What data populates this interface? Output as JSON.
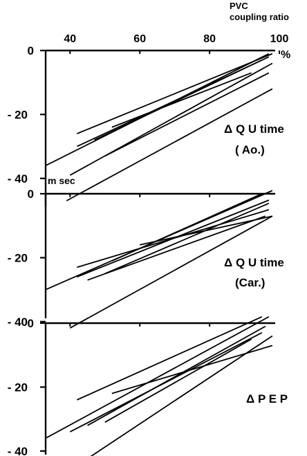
{
  "top_label_line1": "PVC",
  "top_label_line2": "coupling ratio",
  "x_unit": "%",
  "y_unit": "m sec",
  "x_ticks": [
    "40",
    "60",
    "80",
    "100"
  ],
  "chart_data": [
    {
      "type": "line",
      "label_lines": [
        "Δ Q U time",
        "( Ao.)"
      ],
      "xlim": [
        33,
        100
      ],
      "ylim": [
        -45,
        0
      ],
      "y_ticks": [
        "0",
        "-20",
        "-40"
      ],
      "series": [
        {
          "x": [
            33,
            97
          ],
          "y": [
            -36,
            -1
          ]
        },
        {
          "x": [
            40,
            98
          ],
          "y": [
            -39,
            -4
          ]
        },
        {
          "x": [
            42,
            98
          ],
          "y": [
            -26,
            -1
          ]
        },
        {
          "x": [
            42,
            97
          ],
          "y": [
            -30,
            -2
          ]
        },
        {
          "x": [
            47,
            95
          ],
          "y": [
            -28,
            -3
          ]
        },
        {
          "x": [
            52,
            92
          ],
          "y": [
            -24,
            -7
          ]
        },
        {
          "x": [
            50,
            97
          ],
          "y": [
            -33,
            -7
          ]
        },
        {
          "x": [
            39,
            98
          ],
          "y": [
            -47,
            -12
          ]
        }
      ]
    },
    {
      "type": "line",
      "label_lines": [
        "Δ Q U time",
        "(Car.)"
      ],
      "xlim": [
        33,
        100
      ],
      "ylim": [
        -45,
        0
      ],
      "y_ticks": [
        "0",
        "-20",
        "-40"
      ],
      "series": [
        {
          "x": [
            33,
            98
          ],
          "y": [
            -30,
            1
          ]
        },
        {
          "x": [
            40,
            98
          ],
          "y": [
            -42,
            -7
          ]
        },
        {
          "x": [
            42,
            97
          ],
          "y": [
            -23,
            -5
          ]
        },
        {
          "x": [
            42,
            97
          ],
          "y": [
            -26,
            -2
          ]
        },
        {
          "x": [
            45,
            96
          ],
          "y": [
            -27,
            -7
          ]
        },
        {
          "x": [
            50,
            97
          ],
          "y": [
            -25,
            -3
          ]
        },
        {
          "x": [
            60,
            98
          ],
          "y": [
            -16,
            -7
          ]
        },
        {
          "x": [
            52,
            95
          ],
          "y": [
            -21,
            0
          ]
        }
      ]
    },
    {
      "type": "line",
      "label_lines": [
        "Δ P E P"
      ],
      "xlim": [
        33,
        100
      ],
      "ylim": [
        -45,
        0
      ],
      "y_ticks": [
        "0",
        "-20",
        "-40"
      ],
      "series": [
        {
          "x": [
            33,
            97
          ],
          "y": [
            -36,
            2
          ]
        },
        {
          "x": [
            40,
            98
          ],
          "y": [
            -46,
            -4
          ]
        },
        {
          "x": [
            42,
            95
          ],
          "y": [
            -24,
            2
          ]
        },
        {
          "x": [
            40,
            95
          ],
          "y": [
            -34,
            -3
          ]
        },
        {
          "x": [
            52,
            98
          ],
          "y": [
            -22,
            -7
          ]
        },
        {
          "x": [
            50,
            92
          ],
          "y": [
            -31,
            -5
          ]
        },
        {
          "x": [
            45,
            96
          ],
          "y": [
            -32,
            -1
          ]
        }
      ]
    }
  ]
}
